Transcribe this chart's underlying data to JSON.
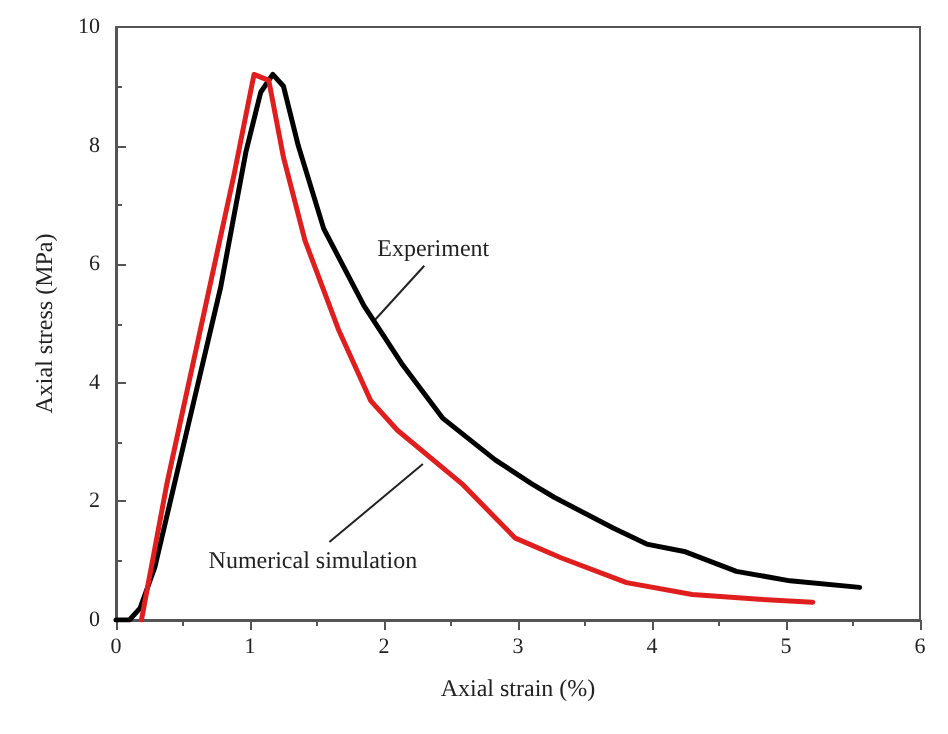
{
  "chart_data": {
    "type": "line",
    "xlabel": "Axial strain (%)",
    "ylabel": "Axial stress (MPa)",
    "xlim": [
      0,
      6
    ],
    "ylim": [
      0,
      10
    ],
    "xticks": [
      0,
      1,
      2,
      3,
      4,
      5,
      6
    ],
    "yticks": [
      0,
      2,
      4,
      6,
      8,
      10
    ],
    "grid": false,
    "marker": "none",
    "line_style": "solid",
    "series": [
      {
        "color": "#000000",
        "x": [
          0,
          0.1,
          0.18,
          0.29,
          0.53,
          0.78,
          0.97,
          1.08,
          1.17,
          1.25,
          1.36,
          1.55,
          1.85,
          2.14,
          2.44,
          2.83,
          3.1,
          3.27,
          3.71,
          3.96,
          4.25,
          4.63,
          5.03,
          5.55
        ],
        "values": [
          0,
          0,
          0.2,
          0.89,
          3.2,
          5.6,
          7.9,
          8.9,
          9.2,
          9.0,
          8.0,
          6.6,
          5.3,
          4.3,
          3.4,
          2.7,
          2.3,
          2.07,
          1.55,
          1.28,
          1.15,
          0.82,
          0.66,
          0.55
        ]
      },
      {
        "color": "#e01e1e",
        "x": [
          0.19,
          0.38,
          0.63,
          0.88,
          1.03,
          1.14,
          1.25,
          1.41,
          1.66,
          1.9,
          2.1,
          2.58,
          2.98,
          3.32,
          3.81,
          4.3,
          4.8,
          5.2
        ],
        "values": [
          0,
          2.3,
          4.9,
          7.5,
          9.2,
          9.1,
          7.8,
          6.4,
          4.9,
          3.7,
          3.2,
          2.3,
          1.38,
          1.05,
          0.63,
          0.43,
          0.35,
          0.3
        ]
      }
    ],
    "annotations": [
      {
        "text": "Experiment",
        "x": 1.92,
        "y": 5.03
      },
      {
        "text": "Numerical simulation",
        "x": 2.29,
        "y": 2.63
      }
    ]
  }
}
